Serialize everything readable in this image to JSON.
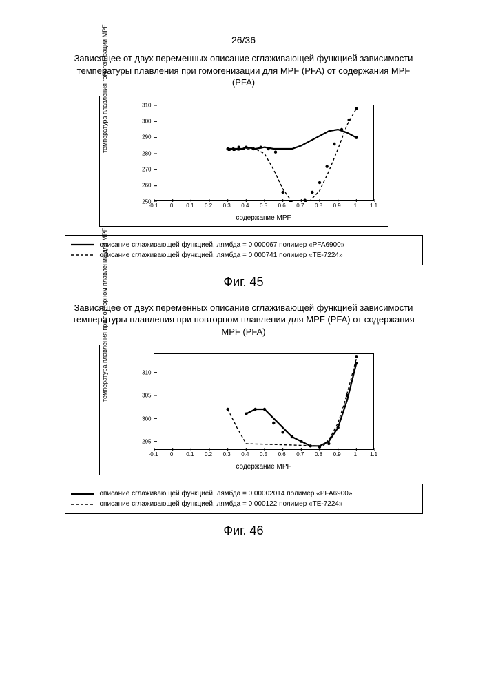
{
  "page_number": "26/36",
  "fig45": {
    "title": "Зависящее от двух переменных описание сглаживающей функцией зависимости температуры плавления при гомогенизации для MPF (PFA) от содержания MPF (PFA)",
    "x_label": "содержание MPF",
    "y_label": "температура плавления гомогенизации MPF",
    "caption": "Фиг. 45",
    "xlim": [
      -0.1,
      1.1
    ],
    "ylim": [
      250,
      310
    ],
    "x_ticks": [
      -0.1,
      0,
      0.1,
      0.2,
      0.3,
      0.4,
      0.5,
      0.6,
      0.7,
      0.8,
      0.9,
      1,
      1.1
    ],
    "y_ticks": [
      250,
      260,
      270,
      280,
      290,
      300,
      310
    ],
    "series_solid": {
      "color": "#000000",
      "dash": "none",
      "width": 2.2,
      "points": [
        [
          0.3,
          283
        ],
        [
          0.35,
          283
        ],
        [
          0.38,
          283
        ],
        [
          0.4,
          284
        ],
        [
          0.45,
          283
        ],
        [
          0.5,
          284
        ],
        [
          0.55,
          283
        ],
        [
          0.6,
          283
        ],
        [
          0.65,
          283
        ],
        [
          0.7,
          285
        ],
        [
          0.75,
          288
        ],
        [
          0.8,
          291
        ],
        [
          0.85,
          294
        ],
        [
          0.9,
          295
        ],
        [
          0.95,
          293
        ],
        [
          1.0,
          290
        ]
      ]
    },
    "series_dash": {
      "color": "#000000",
      "dash": "4 3",
      "width": 1.4,
      "points": [
        [
          0.3,
          282
        ],
        [
          0.35,
          282
        ],
        [
          0.4,
          283
        ],
        [
          0.45,
          283
        ],
        [
          0.5,
          280
        ],
        [
          0.55,
          270
        ],
        [
          0.6,
          258
        ],
        [
          0.65,
          250
        ],
        [
          0.7,
          249
        ],
        [
          0.75,
          251
        ],
        [
          0.8,
          257
        ],
        [
          0.85,
          269
        ],
        [
          0.9,
          283
        ],
        [
          0.95,
          298
        ],
        [
          1.0,
          308
        ]
      ]
    },
    "markers": [
      [
        0.3,
        283
      ],
      [
        0.33,
        283
      ],
      [
        0.36,
        284
      ],
      [
        0.4,
        284
      ],
      [
        0.44,
        283
      ],
      [
        0.48,
        284
      ],
      [
        0.52,
        283
      ],
      [
        0.56,
        281
      ],
      [
        0.6,
        256
      ],
      [
        0.64,
        250
      ],
      [
        0.68,
        249
      ],
      [
        0.72,
        251
      ],
      [
        0.76,
        256
      ],
      [
        0.8,
        262
      ],
      [
        0.84,
        272
      ],
      [
        0.88,
        286
      ],
      [
        0.92,
        295
      ],
      [
        0.96,
        301
      ],
      [
        1.0,
        308
      ],
      [
        1.0,
        290
      ]
    ],
    "marker_color": "#000000",
    "marker_radius": 2.2,
    "legend": [
      {
        "style": "solid",
        "text": "описание сглаживающей функцией, лямбда = 0,000067 полимер «PFA6900»"
      },
      {
        "style": "dash",
        "text": "описание сглаживающей функцией, лямбда = 0,000741 полимер «TE-7224»"
      }
    ]
  },
  "fig46": {
    "title": "Зависящее от двух переменных описание сглаживающей функцией зависимости температуры плавления при повторном плавлении для MPF (PFA) от содержания MPF (PFA)",
    "x_label": "содержание MPF",
    "y_label": "температура плавления при повторном плавлении для MPF",
    "caption": "Фиг. 46",
    "xlim": [
      -0.1,
      1.1
    ],
    "ylim": [
      293,
      314
    ],
    "x_ticks": [
      -0.1,
      0,
      0.1,
      0.2,
      0.3,
      0.4,
      0.5,
      0.6,
      0.7,
      0.8,
      0.9,
      1,
      1.1
    ],
    "y_ticks": [
      295,
      300,
      305,
      310
    ],
    "series_solid": {
      "color": "#000000",
      "dash": "none",
      "width": 2.2,
      "points": [
        [
          0.4,
          301
        ],
        [
          0.45,
          302
        ],
        [
          0.5,
          302
        ],
        [
          0.55,
          300
        ],
        [
          0.6,
          298
        ],
        [
          0.65,
          296
        ],
        [
          0.7,
          295
        ],
        [
          0.75,
          294
        ],
        [
          0.8,
          294
        ],
        [
          0.85,
          295
        ],
        [
          0.9,
          298
        ],
        [
          0.95,
          304
        ],
        [
          1.0,
          312
        ]
      ]
    },
    "series_dash": {
      "color": "#000000",
      "dash": "4 3",
      "width": 1.4,
      "points": [
        [
          0.3,
          302
        ],
        [
          0.35,
          298
        ],
        [
          0.4,
          294.5
        ],
        [
          0.82,
          294
        ],
        [
          0.86,
          296
        ],
        [
          0.9,
          299
        ],
        [
          0.94,
          304
        ],
        [
          0.98,
          310
        ],
        [
          1.0,
          313
        ]
      ]
    },
    "markers": [
      [
        0.3,
        302
      ],
      [
        0.4,
        301
      ],
      [
        0.45,
        302
      ],
      [
        0.5,
        302
      ],
      [
        0.55,
        299
      ],
      [
        0.6,
        297
      ],
      [
        0.65,
        296
      ],
      [
        0.7,
        295
      ],
      [
        0.75,
        294
      ],
      [
        0.8,
        293.8
      ],
      [
        0.85,
        294.5
      ],
      [
        0.9,
        298
      ],
      [
        0.95,
        305
      ],
      [
        1.0,
        312
      ],
      [
        1.0,
        313.5
      ]
    ],
    "marker_color": "#000000",
    "marker_radius": 2.2,
    "legend": [
      {
        "style": "solid",
        "text": "описание сглаживающей функцией, лямбда = 0,00002014 полимер «PFA6900»"
      },
      {
        "style": "dash",
        "text": "описание сглаживающей функцией, лямбда = 0,000122 полимер «TE-7224»"
      }
    ]
  }
}
